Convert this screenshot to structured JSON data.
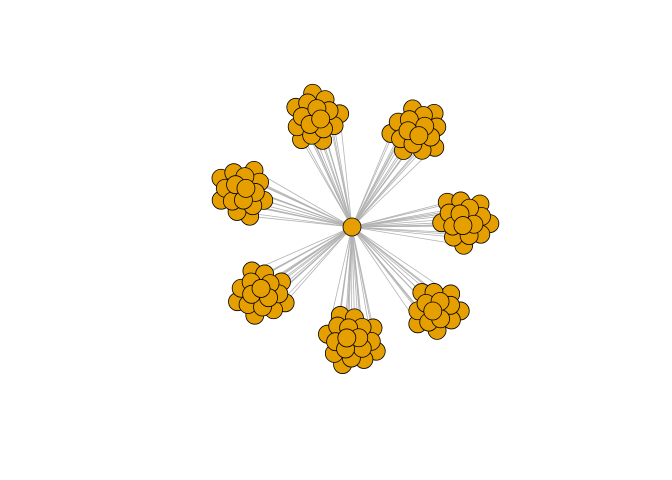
{
  "graph": {
    "layout": "radial-clusters",
    "edge_color": "#b3b3b3",
    "node_fill": "#e69f00",
    "node_stroke": "#000000",
    "hub": {
      "name": "hub"
    },
    "clusters": [
      {
        "name": "cluster-top",
        "size": 16
      },
      {
        "name": "cluster-upper-right",
        "size": 16
      },
      {
        "name": "cluster-right",
        "size": 16
      },
      {
        "name": "cluster-lower-right",
        "size": 14
      },
      {
        "name": "cluster-bottom",
        "size": 18
      },
      {
        "name": "cluster-lower-left",
        "size": 16
      },
      {
        "name": "cluster-left",
        "size": 16
      }
    ]
  }
}
